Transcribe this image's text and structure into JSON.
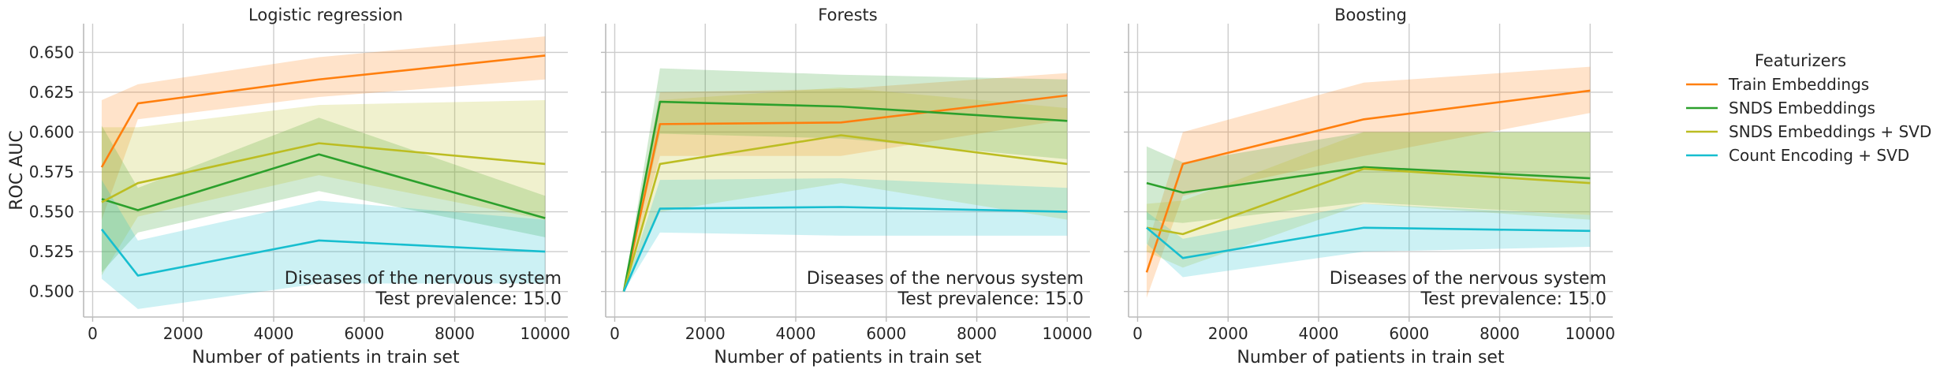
{
  "chart_data": {
    "type": "line",
    "ylabel": "ROC AUC",
    "xlabel": "Number of patients in train set",
    "xlim": [
      -200,
      10500
    ],
    "ylim": [
      0.484,
      0.668
    ],
    "x_ticks": [
      "0",
      "2000",
      "4000",
      "6000",
      "8000",
      "10000"
    ],
    "x_tick_values": [
      0,
      2000,
      4000,
      6000,
      8000,
      10000
    ],
    "y_ticks": [
      "0.500",
      "0.525",
      "0.550",
      "0.575",
      "0.600",
      "0.625",
      "0.650"
    ],
    "y_tick_values": [
      0.5,
      0.525,
      0.55,
      0.575,
      0.6,
      0.625,
      0.65
    ],
    "grid": true,
    "legend": {
      "title": "Featurizers",
      "placement": "right",
      "entries": [
        {
          "label": "Train Embeddings",
          "color": "#ff7f0e"
        },
        {
          "label": "SNDS Embeddings",
          "color": "#2ca02c"
        },
        {
          "label": "SNDS Embeddings + SVD",
          "color": "#bcbd22"
        },
        {
          "label": "Count Encoding + SVD",
          "color": "#17becf"
        }
      ]
    },
    "panels": [
      {
        "title": "Logistic regression",
        "annotation": [
          "Diseases of the nervous system",
          "Test prevalence: 15.0"
        ],
        "series": [
          {
            "name": "Train Embeddings",
            "x": [
              200,
              1000,
              5000,
              10000
            ],
            "y": [
              0.578,
              0.618,
              0.633,
              0.648
            ],
            "lower": [
              0.545,
              0.608,
              0.622,
              0.633
            ],
            "upper": [
              0.62,
              0.63,
              0.647,
              0.66
            ]
          },
          {
            "name": "SNDS Embeddings",
            "x": [
              200,
              1000,
              5000,
              10000
            ],
            "y": [
              0.558,
              0.551,
              0.586,
              0.546
            ],
            "lower": [
              0.512,
              0.537,
              0.563,
              0.534
            ],
            "upper": [
              0.604,
              0.565,
              0.609,
              0.56
            ]
          },
          {
            "name": "SNDS Embeddings + SVD",
            "x": [
              200,
              1000,
              5000,
              10000
            ],
            "y": [
              0.556,
              0.568,
              0.593,
              0.58
            ],
            "lower": [
              0.51,
              0.547,
              0.573,
              0.545
            ],
            "upper": [
              0.603,
              0.603,
              0.617,
              0.62
            ]
          },
          {
            "name": "Count Encoding + SVD",
            "x": [
              200,
              1000,
              5000,
              10000
            ],
            "y": [
              0.539,
              0.51,
              0.532,
              0.525
            ],
            "lower": [
              0.508,
              0.489,
              0.505,
              0.505
            ],
            "upper": [
              0.57,
              0.532,
              0.557,
              0.545
            ]
          }
        ]
      },
      {
        "title": "Forests",
        "annotation": [
          "Diseases of the nervous system",
          "Test prevalence: 15.0"
        ],
        "series": [
          {
            "name": "Train Embeddings",
            "x": [
              200,
              1000,
              5000,
              10000
            ],
            "y": [
              0.5,
              0.605,
              0.606,
              0.623
            ],
            "lower": [
              0.5,
              0.585,
              0.585,
              0.608
            ],
            "upper": [
              0.5,
              0.625,
              0.627,
              0.637
            ]
          },
          {
            "name": "SNDS Embeddings",
            "x": [
              200,
              1000,
              5000,
              10000
            ],
            "y": [
              0.5,
              0.619,
              0.616,
              0.607
            ],
            "lower": [
              0.5,
              0.599,
              0.596,
              0.583
            ],
            "upper": [
              0.5,
              0.64,
              0.636,
              0.633
            ]
          },
          {
            "name": "SNDS Embeddings + SVD",
            "x": [
              200,
              1000,
              5000,
              10000
            ],
            "y": [
              0.5,
              0.58,
              0.598,
              0.58
            ],
            "lower": [
              0.5,
              0.55,
              0.568,
              0.545
            ],
            "upper": [
              0.5,
              0.62,
              0.628,
              0.615
            ]
          },
          {
            "name": "Count Encoding + SVD",
            "x": [
              200,
              1000,
              5000,
              10000
            ],
            "y": [
              0.5,
              0.552,
              0.553,
              0.55
            ],
            "lower": [
              0.5,
              0.537,
              0.535,
              0.535
            ],
            "upper": [
              0.5,
              0.57,
              0.571,
              0.565
            ]
          }
        ]
      },
      {
        "title": "Boosting",
        "annotation": [
          "Diseases of the nervous system",
          "Test prevalence: 15.0"
        ],
        "series": [
          {
            "name": "Train Embeddings",
            "x": [
              200,
              1000,
              5000,
              10000
            ],
            "y": [
              0.512,
              0.58,
              0.608,
              0.626
            ],
            "lower": [
              0.496,
              0.56,
              0.585,
              0.612
            ],
            "upper": [
              0.528,
              0.6,
              0.631,
              0.641
            ]
          },
          {
            "name": "SNDS Embeddings",
            "x": [
              200,
              1000,
              5000,
              10000
            ],
            "y": [
              0.568,
              0.562,
              0.578,
              0.571
            ],
            "lower": [
              0.545,
              0.543,
              0.556,
              0.548
            ],
            "upper": [
              0.591,
              0.581,
              0.6,
              0.6
            ]
          },
          {
            "name": "SNDS Embeddings + SVD",
            "x": [
              200,
              1000,
              5000,
              10000
            ],
            "y": [
              0.54,
              0.536,
              0.577,
              0.568
            ],
            "lower": [
              0.525,
              0.515,
              0.555,
              0.545
            ],
            "upper": [
              0.555,
              0.557,
              0.6,
              0.6
            ]
          },
          {
            "name": "Count Encoding + SVD",
            "x": [
              200,
              1000,
              5000,
              10000
            ],
            "y": [
              0.54,
              0.521,
              0.54,
              0.538
            ],
            "lower": [
              0.53,
              0.509,
              0.525,
              0.528
            ],
            "upper": [
              0.55,
              0.533,
              0.555,
              0.548
            ]
          }
        ]
      }
    ]
  }
}
